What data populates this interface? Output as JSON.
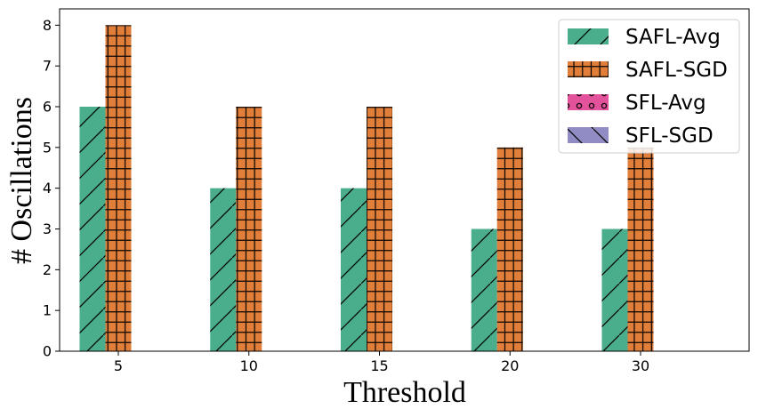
{
  "chart_data": {
    "type": "bar",
    "title": "",
    "xlabel": "Threshold",
    "ylabel": "# Oscillations",
    "categories": [
      "5",
      "10",
      "15",
      "20",
      "30"
    ],
    "ylim": [
      0,
      8.4
    ],
    "yticks": [
      0,
      1,
      2,
      3,
      4,
      5,
      6,
      7,
      8
    ],
    "grid": false,
    "legend_position": "top-right",
    "series": [
      {
        "name": "SAFL-Avg",
        "values": [
          6,
          4,
          4,
          3,
          3
        ],
        "color": "#4aae8c",
        "hatch": "diagonal"
      },
      {
        "name": "SAFL-SGD",
        "values": [
          8,
          6,
          6,
          5,
          5
        ],
        "color": "#e07e3a",
        "hatch": "grid"
      },
      {
        "name": "SFL-Avg",
        "values": [
          0,
          0,
          0,
          0,
          0
        ],
        "color": "#e3539b",
        "hatch": "circles"
      },
      {
        "name": "SFL-SGD",
        "values": [
          0,
          0,
          0,
          0,
          0
        ],
        "color": "#928cc4",
        "hatch": "backdiagonal"
      }
    ]
  }
}
